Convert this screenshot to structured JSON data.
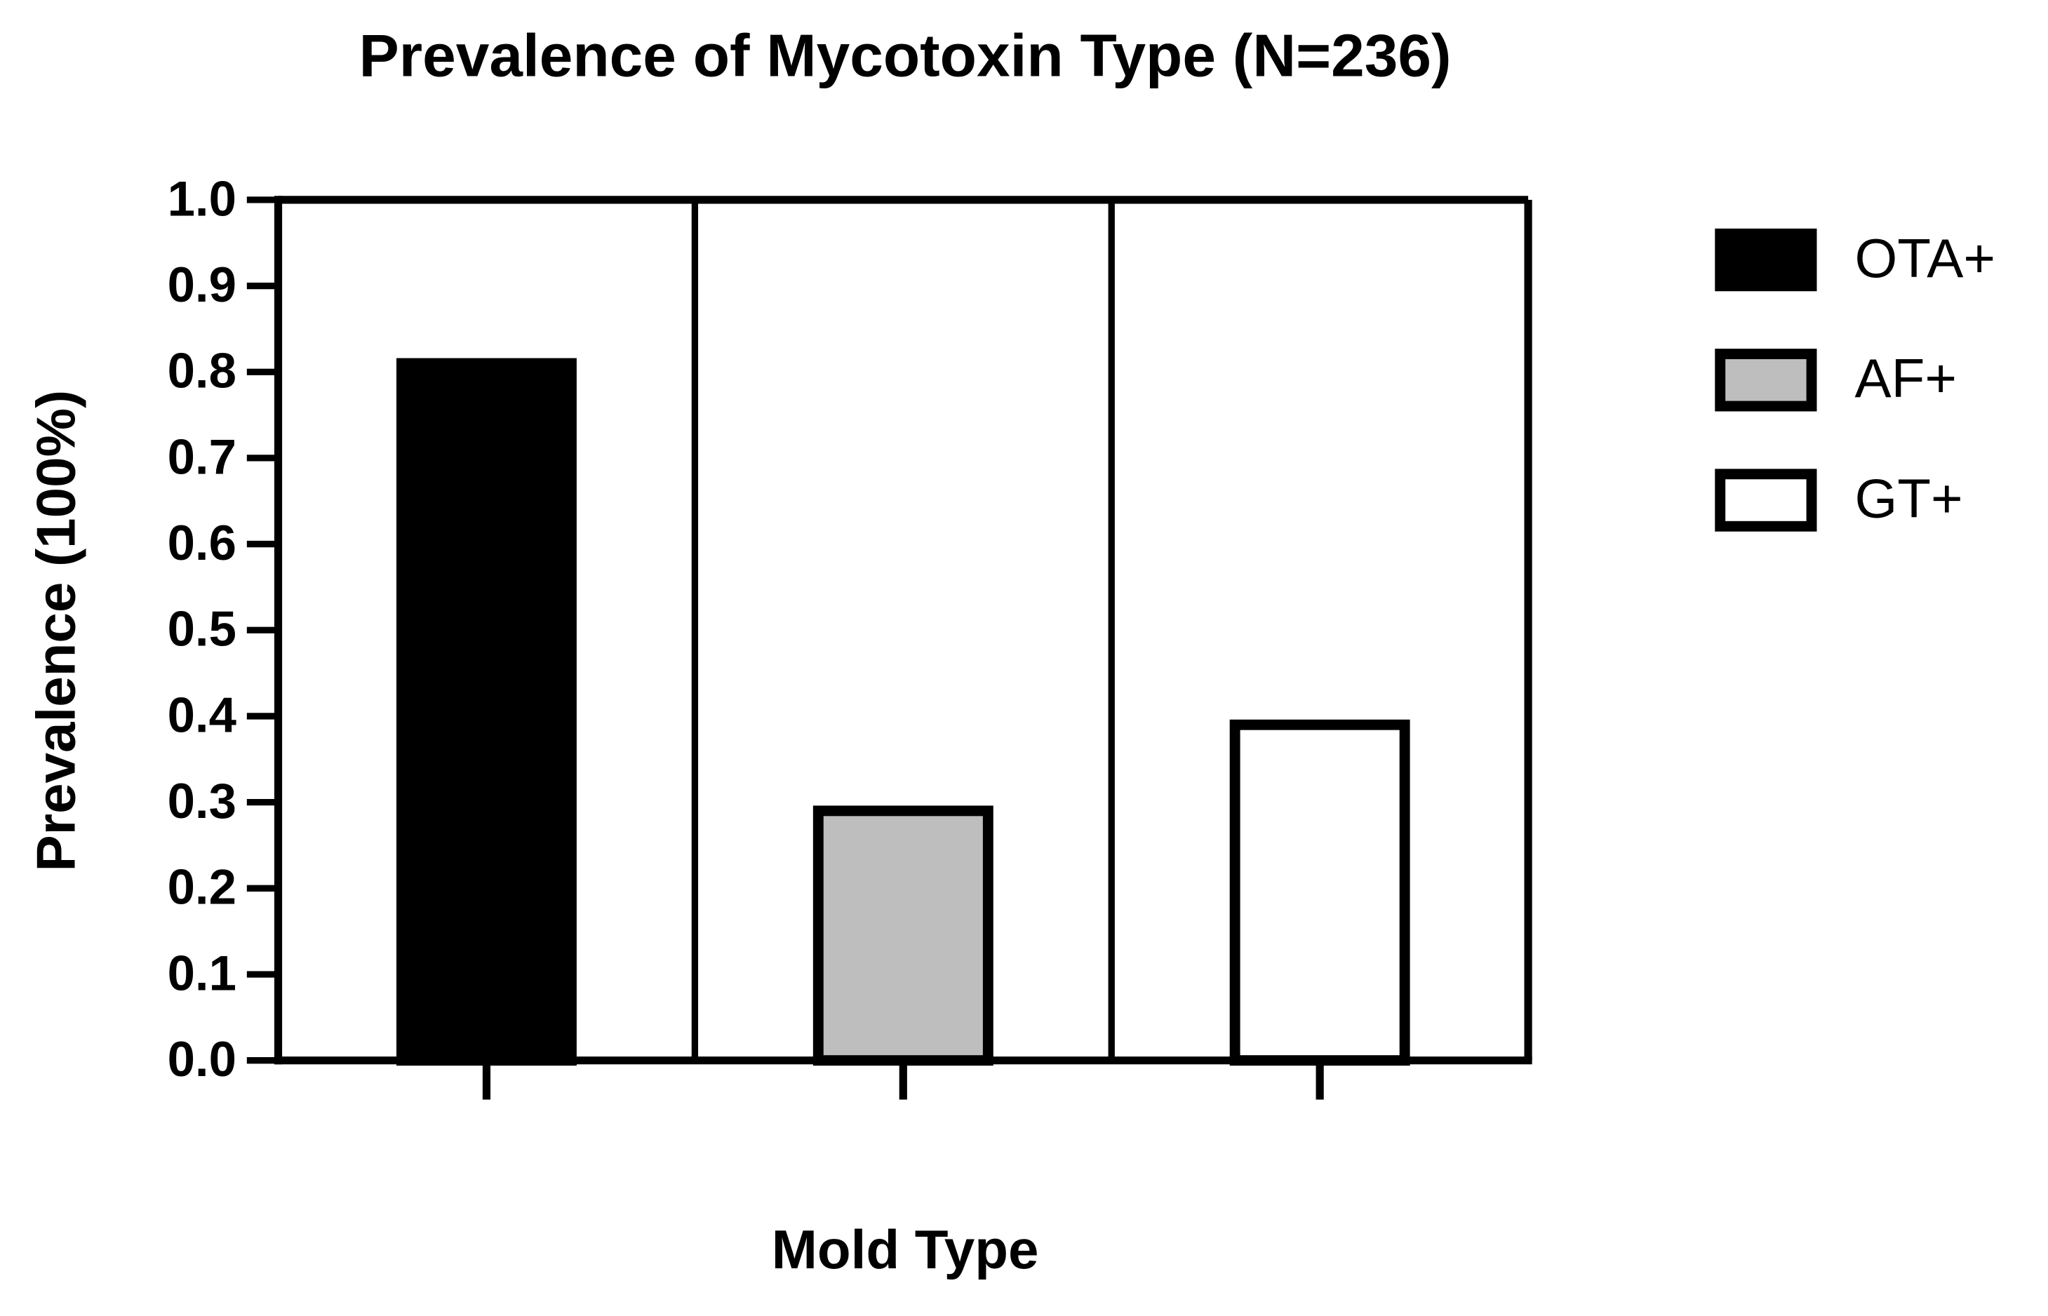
{
  "chart_data": {
    "type": "bar",
    "title": "Prevalence of Mycotoxin Type (N=236)",
    "xlabel": "Mold Type",
    "ylabel": "Prevalence (100%)",
    "categories": [
      null,
      null,
      null
    ],
    "series": [
      {
        "name": "OTA+",
        "color": "#000000",
        "values": [
          0.81,
          null,
          null
        ]
      },
      {
        "name": "AF+",
        "color": "#bebebe",
        "values": [
          null,
          0.29,
          null
        ]
      },
      {
        "name": "GT+",
        "color": "#ffffff",
        "values": [
          null,
          null,
          0.39
        ]
      }
    ],
    "ylim": [
      0,
      1
    ],
    "yticks": [
      {
        "value": 0,
        "label": "0.0"
      },
      0.1,
      0.2,
      0.3,
      0.4,
      0.5,
      0.6,
      0.7,
      0.8,
      0.9,
      {
        "value": 1,
        "label": "1.0"
      }
    ],
    "legend": "right"
  }
}
